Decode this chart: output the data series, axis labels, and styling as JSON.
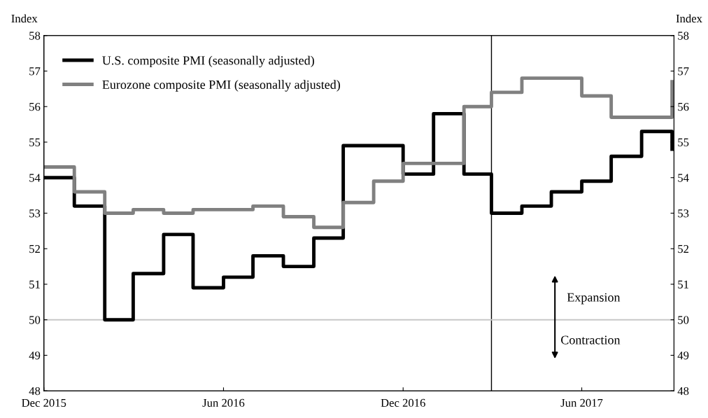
{
  "chart_data": {
    "type": "step",
    "ylabel": "Index",
    "y2label": "Index",
    "x": [
      "2015-12",
      "2016-01",
      "2016-02",
      "2016-03",
      "2016-04",
      "2016-05",
      "2016-06",
      "2016-07",
      "2016-08",
      "2016-09",
      "2016-10",
      "2016-11",
      "2016-12",
      "2017-01",
      "2017-02",
      "2017-03",
      "2017-04",
      "2017-05",
      "2017-06",
      "2017-07",
      "2017-08",
      "2017-09"
    ],
    "series": [
      {
        "name": "U.S. composite PMI (seasonally adjusted)",
        "color": "#000000",
        "values": [
          54.0,
          53.2,
          50.0,
          51.3,
          52.4,
          50.9,
          51.2,
          51.8,
          51.5,
          52.3,
          54.9,
          54.9,
          54.1,
          55.8,
          54.1,
          53.0,
          53.2,
          53.6,
          53.9,
          54.6,
          55.3,
          54.8
        ]
      },
      {
        "name": "Eurozone composite PMI (seasonally adjusted)",
        "color": "#808080",
        "values": [
          54.3,
          53.6,
          53.0,
          53.1,
          53.0,
          53.1,
          53.1,
          53.2,
          52.9,
          52.6,
          53.3,
          53.9,
          54.4,
          54.4,
          56.0,
          56.4,
          56.8,
          56.8,
          56.3,
          55.7,
          55.7,
          56.7
        ]
      }
    ],
    "xlim": [
      "2015-12-01",
      "2017-09-03"
    ],
    "xticks": [
      {
        "value": "2015-12-01",
        "label": "Dec 2015"
      },
      {
        "value": "2016-06-01",
        "label": "Jun 2016"
      },
      {
        "value": "2016-12-01",
        "label": "Dec 2016"
      },
      {
        "value": "2017-06-01",
        "label": "Jun 2017"
      }
    ],
    "ylim": [
      48,
      58
    ],
    "yticks": [
      48,
      49,
      50,
      51,
      52,
      53,
      54,
      55,
      56,
      57,
      58
    ],
    "y2lim": [
      48,
      58
    ],
    "y2ticks": [
      48,
      49,
      50,
      51,
      52,
      53,
      54,
      55,
      56,
      57,
      58
    ],
    "ref_lines": [
      {
        "axis": "x",
        "value": "2017-03-01",
        "color": "#000000"
      },
      {
        "axis": "y",
        "value": 50,
        "color": "#c8c8c8"
      }
    ],
    "annotations": [
      "Expansion",
      "Contraction"
    ],
    "grid": false,
    "legend": "top left",
    "line_style": "solid",
    "marker": "none"
  }
}
